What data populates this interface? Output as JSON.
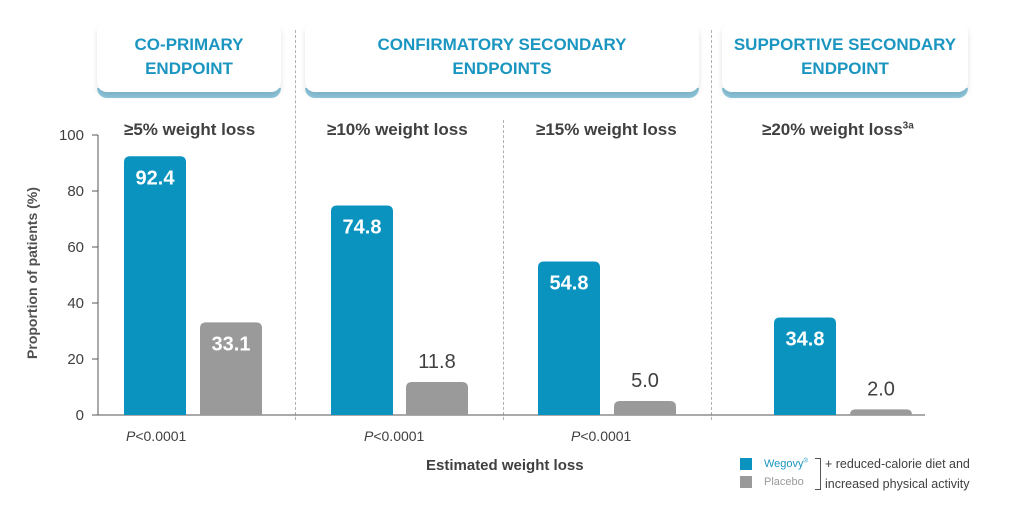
{
  "headers": [
    {
      "label": "CO-PRIMARY ENDPOINT"
    },
    {
      "label": "CONFIRMATORY SECONDARY ENDPOINTS"
    },
    {
      "label": "SUPPORTIVE SECONDARY ENDPOINT"
    }
  ],
  "categories_text": [
    {
      "label": "≥5% weight loss",
      "sup": ""
    },
    {
      "label": "≥10% weight loss",
      "sup": ""
    },
    {
      "label": "≥15% weight loss",
      "sup": ""
    },
    {
      "label": "≥20% weight loss",
      "sup": "3a"
    }
  ],
  "p_values": [
    {
      "p": "P",
      "rest": "<0.0001"
    },
    {
      "p": "P",
      "rest": "<0.0001"
    },
    {
      "p": "P",
      "rest": "<0.0001"
    }
  ],
  "legend": {
    "wegovy": "Wegovy",
    "wegovy_mark": "®",
    "placebo": "Placebo",
    "note_line1": "+ reduced-calorie diet and",
    "note_line2": "increased physical activity"
  },
  "colors": {
    "wegovy": "#0a93bf",
    "placebo": "#9a9a9a",
    "header_text": "#1b96c1"
  },
  "chart_data": {
    "type": "bar",
    "title": "",
    "xlabel": "Estimated weight loss",
    "ylabel": "Proportion of patients (%)",
    "ylim": [
      0,
      100
    ],
    "yticks": [
      0,
      20,
      40,
      60,
      80,
      100
    ],
    "grid": false,
    "legend_position": "bottom-right",
    "categories": [
      "≥5% weight loss",
      "≥10% weight loss",
      "≥15% weight loss",
      "≥20% weight loss"
    ],
    "series": [
      {
        "name": "Wegovy",
        "values": [
          92.4,
          74.8,
          54.8,
          34.8
        ],
        "labels": [
          "92.4",
          "74.8",
          "54.8",
          "34.8"
        ]
      },
      {
        "name": "Placebo",
        "values": [
          33.1,
          11.8,
          5.0,
          2.0
        ],
        "labels": [
          "33.1",
          "11.8",
          "5.0",
          "2.0"
        ]
      }
    ]
  }
}
